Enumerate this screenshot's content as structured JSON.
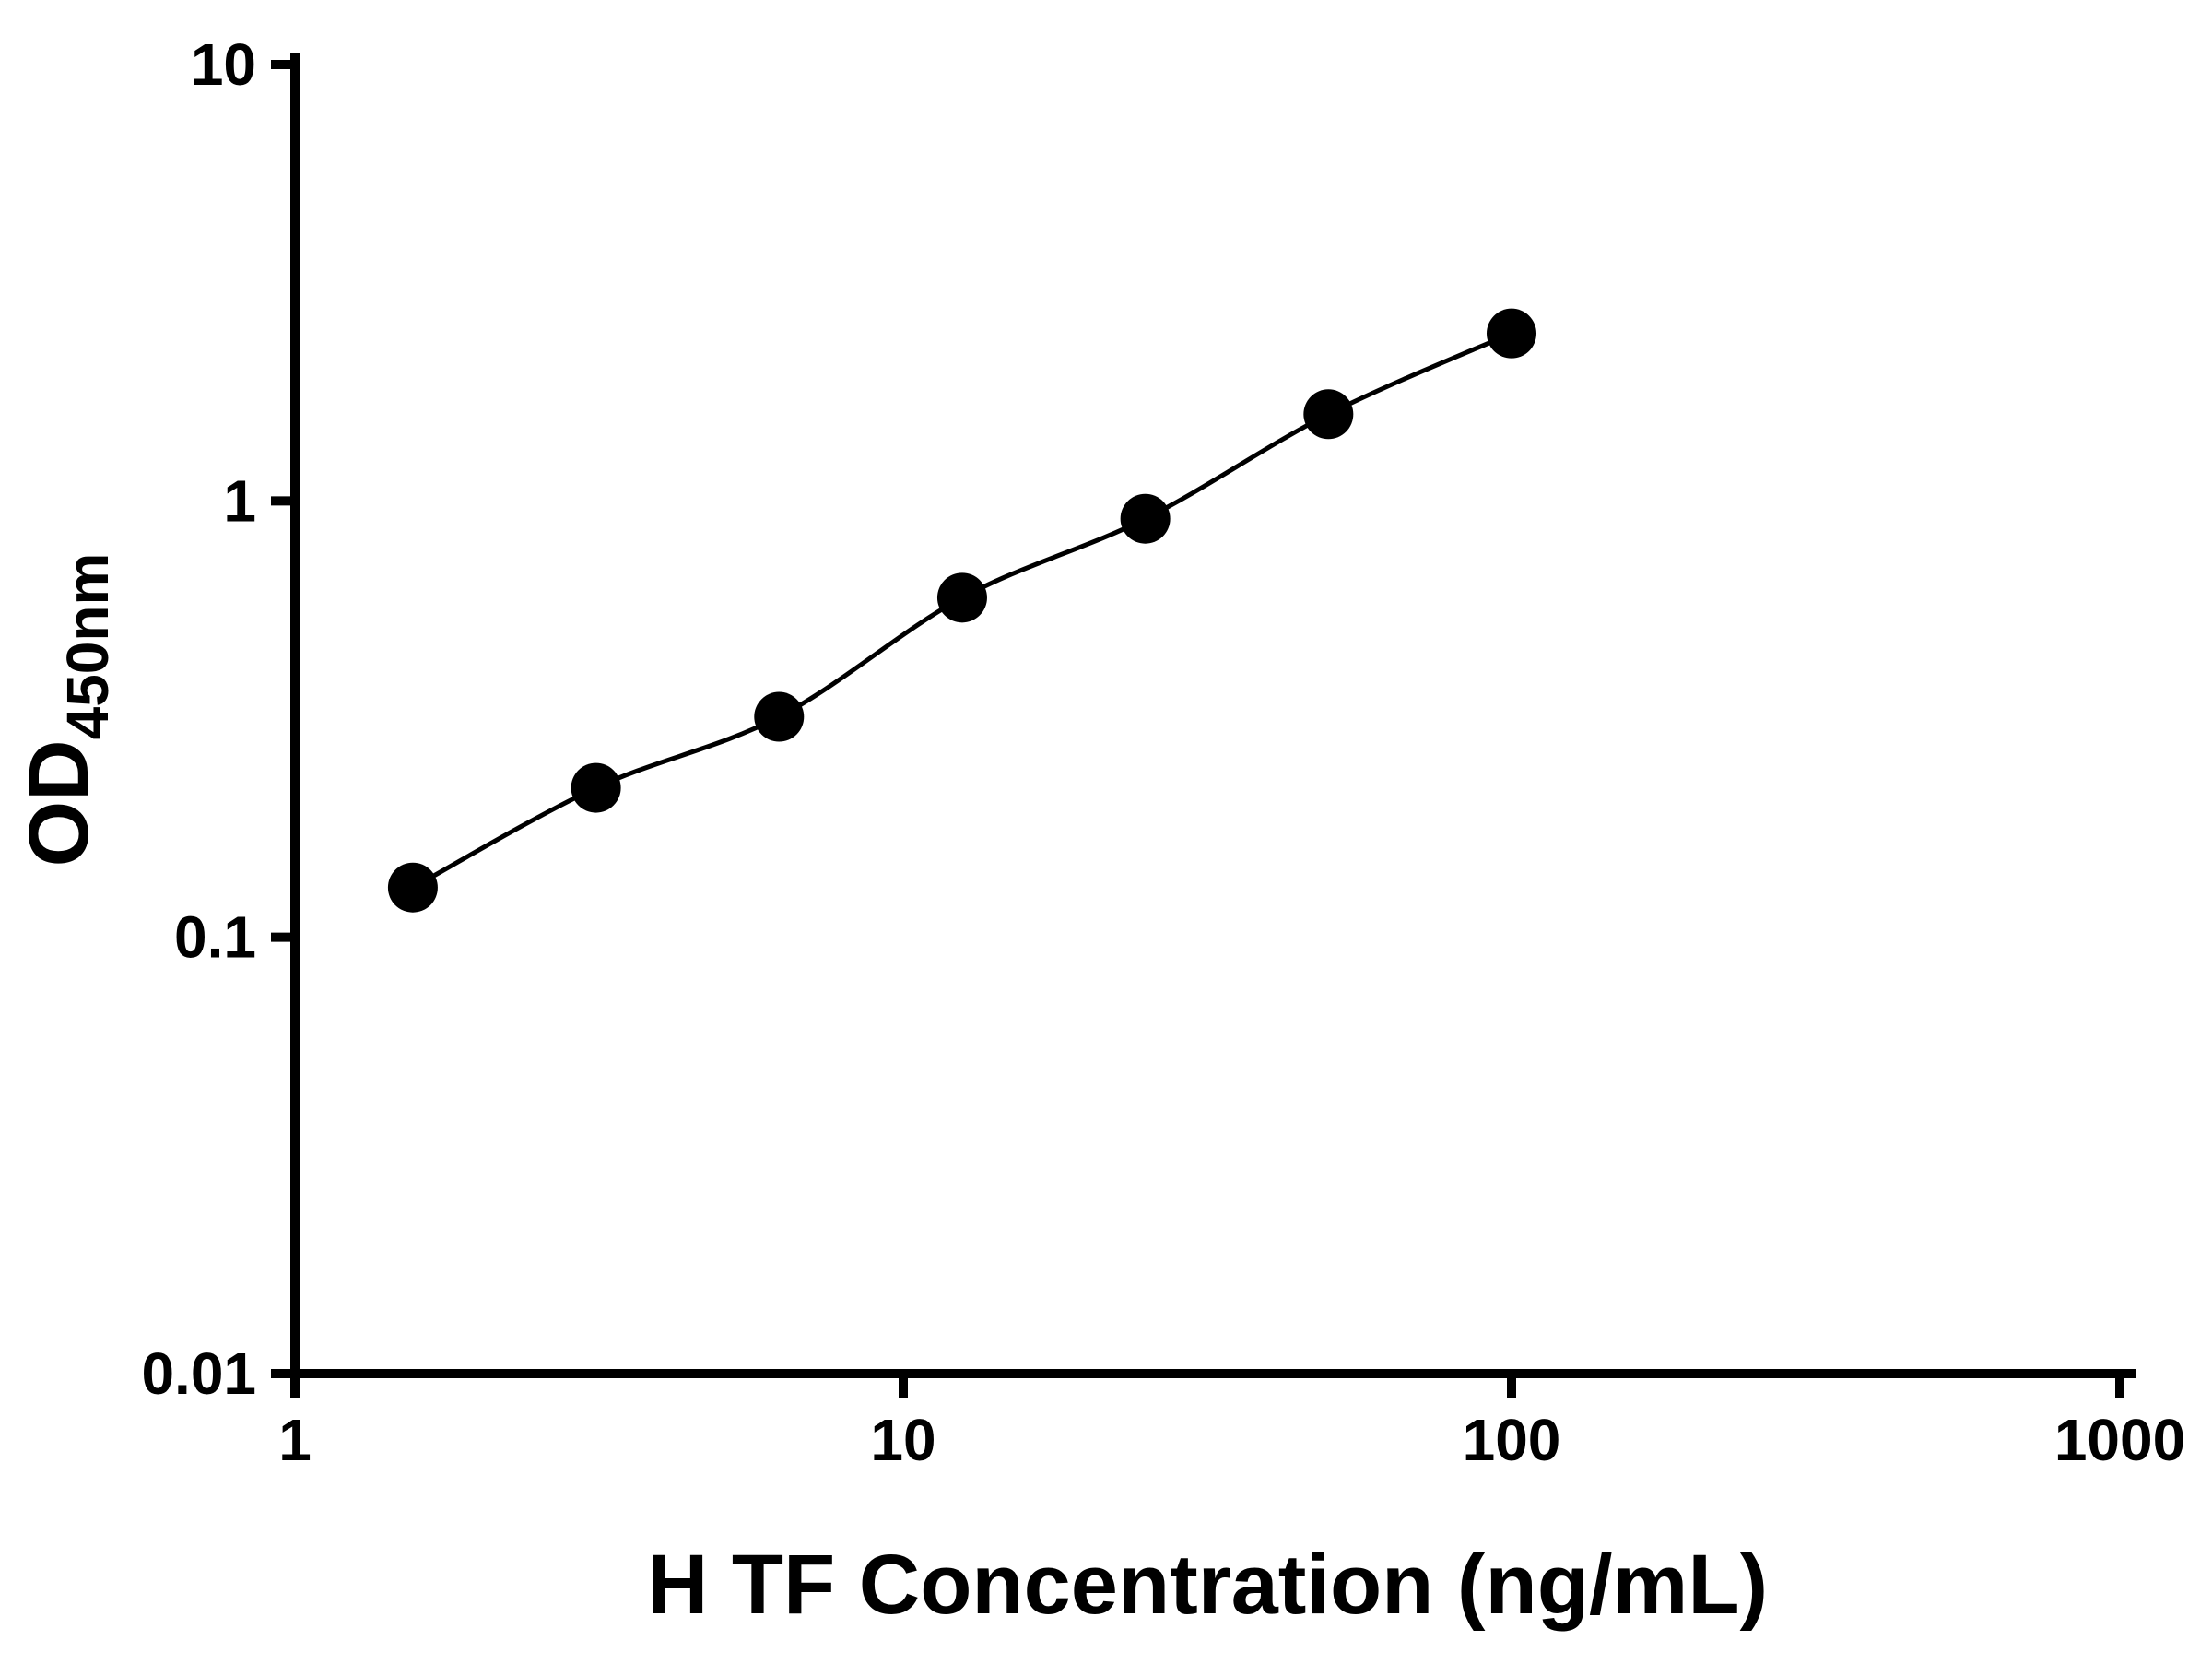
{
  "chart_data": {
    "type": "scatter",
    "connect_points": true,
    "title": "",
    "xlabel": "H TF Concentration (ng/mL)",
    "ylabel_main": "OD",
    "ylabel_sub": "450nm",
    "x_scale": "log",
    "y_scale": "log",
    "xlim": [
      1,
      1000
    ],
    "ylim": [
      0.01,
      10
    ],
    "x_ticks": [
      1,
      10,
      100,
      1000
    ],
    "x_tick_labels": [
      "1",
      "10",
      "100",
      "1000"
    ],
    "y_ticks": [
      0.01,
      0.1,
      1,
      10
    ],
    "y_tick_labels": [
      "0.01",
      "0.1",
      "1",
      "10"
    ],
    "x": [
      1.5625,
      3.125,
      6.25,
      12.5,
      25,
      50,
      100
    ],
    "y": [
      0.13,
      0.22,
      0.32,
      0.6,
      0.91,
      1.58,
      2.42
    ],
    "marker": "circle",
    "marker_color": "#000000",
    "line_color": "#000000",
    "axis_color": "#000000",
    "background": "#ffffff",
    "grid": false,
    "legend": false
  }
}
